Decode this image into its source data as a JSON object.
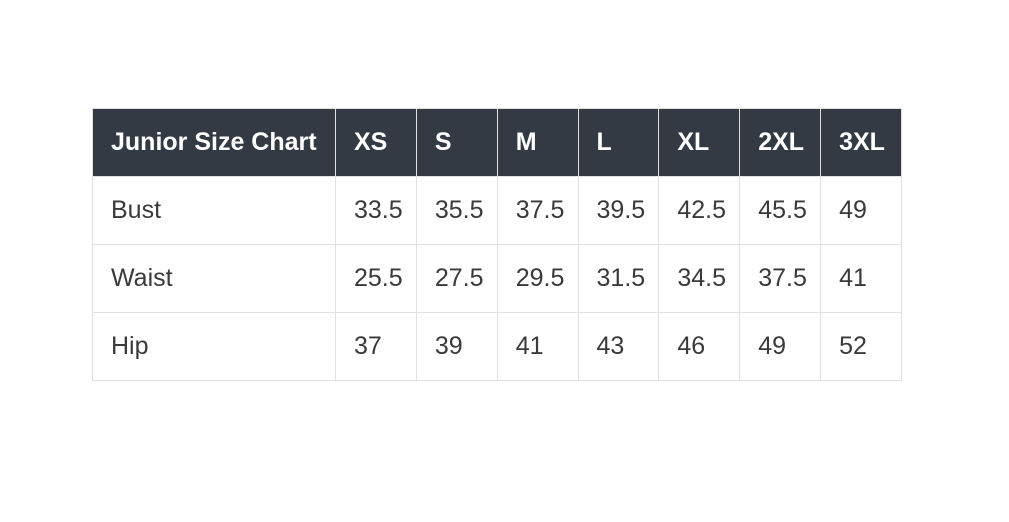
{
  "page": {
    "background_color": "#ffffff"
  },
  "table": {
    "header_bg_color": "#333a44",
    "header_text_color": "#ffffff",
    "body_text_color": "#3a3a3a",
    "border_color": "#e1e1e1",
    "columns": [
      "Junior Size Chart",
      "XS",
      "S",
      "M",
      "L",
      "XL",
      "2XL",
      "3XL"
    ],
    "rows": [
      {
        "label": "Bust",
        "values": [
          "33.5",
          "35.5",
          "37.5",
          "39.5",
          "42.5",
          "45.5",
          "49"
        ]
      },
      {
        "label": "Waist",
        "values": [
          "25.5",
          "27.5",
          "29.5",
          "31.5",
          "34.5",
          "37.5",
          "41"
        ]
      },
      {
        "label": "Hip",
        "values": [
          "37",
          "39",
          "41",
          "43",
          "46",
          "49",
          "52"
        ]
      }
    ]
  },
  "chart_data": {
    "type": "table",
    "title": "Junior Size Chart",
    "columns": [
      "XS",
      "S",
      "M",
      "L",
      "XL",
      "2XL",
      "3XL"
    ],
    "rows": [
      {
        "measurement": "Bust",
        "values": [
          33.5,
          35.5,
          37.5,
          39.5,
          42.5,
          45.5,
          49
        ]
      },
      {
        "measurement": "Waist",
        "values": [
          25.5,
          27.5,
          29.5,
          31.5,
          34.5,
          37.5,
          41
        ]
      },
      {
        "measurement": "Hip",
        "values": [
          37,
          39,
          41,
          43,
          46,
          49,
          52
        ]
      }
    ]
  }
}
